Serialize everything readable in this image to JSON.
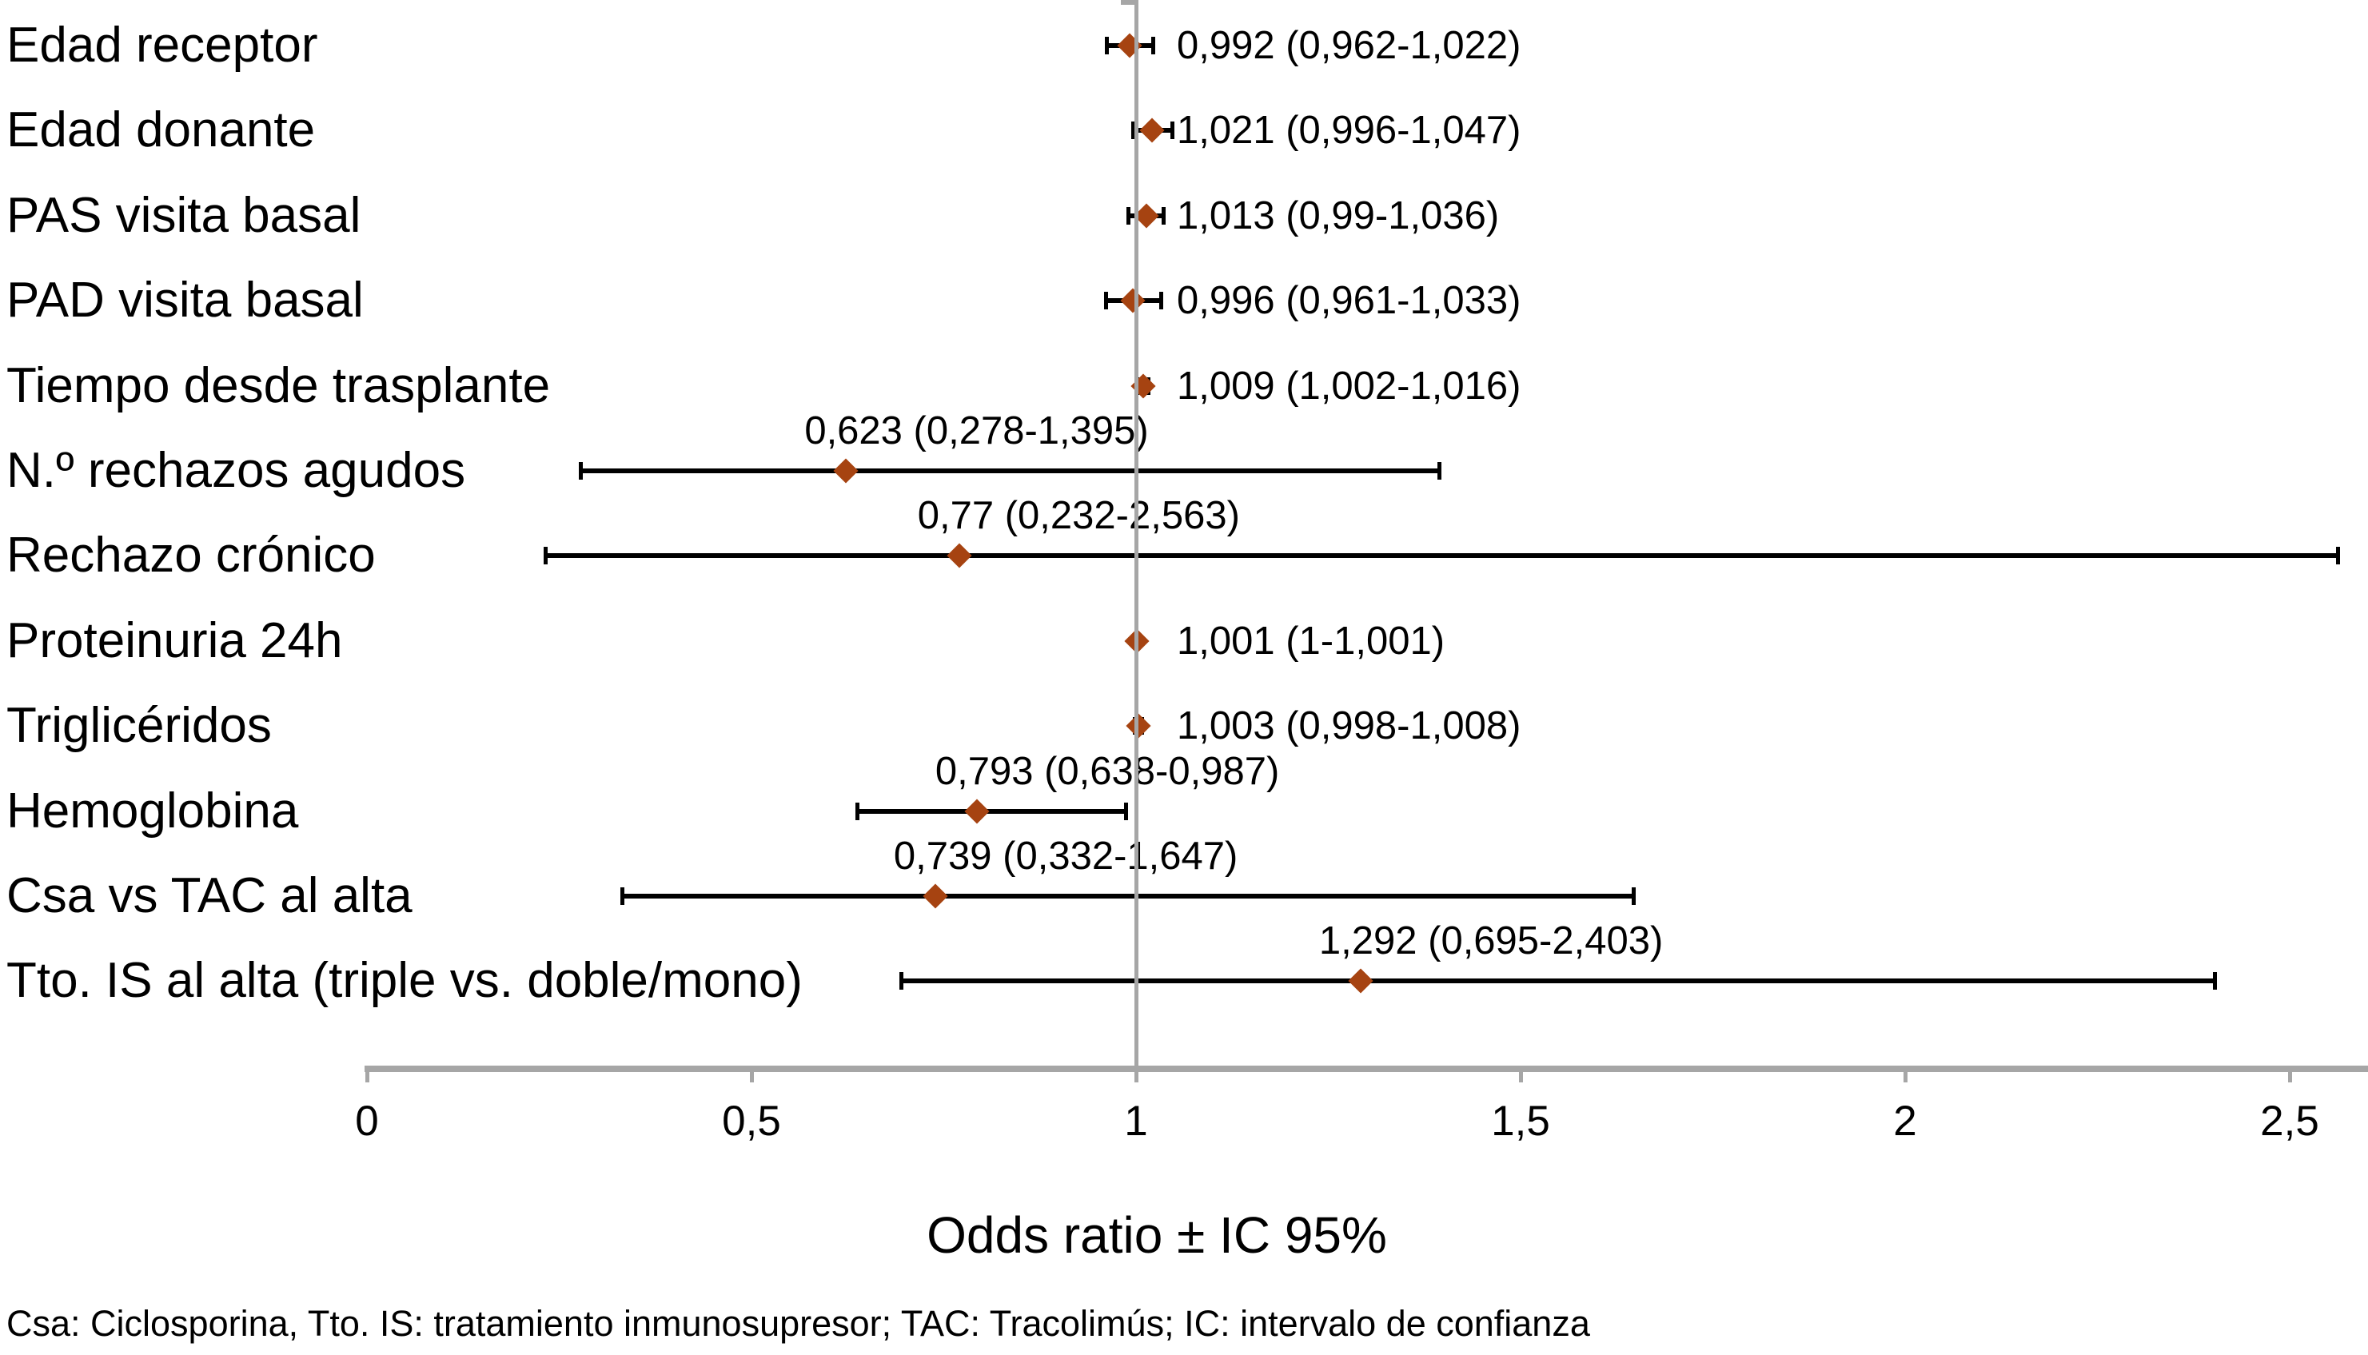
{
  "chart_data": {
    "type": "scatter",
    "subtype": "forest-plot",
    "rows": [
      {
        "label": "Edad receptor",
        "annotation": "0,992 (0,962-1,022)",
        "or": 0.992,
        "ci_low": 0.962,
        "ci_high": 1.022,
        "annotation_position": "right"
      },
      {
        "label": "Edad donante",
        "annotation": "1,021 (0,996-1,047)",
        "or": 1.021,
        "ci_low": 0.996,
        "ci_high": 1.047,
        "annotation_position": "right"
      },
      {
        "label": "PAS visita basal",
        "annotation": "1,013 (0,99-1,036)",
        "or": 1.013,
        "ci_low": 0.99,
        "ci_high": 1.036,
        "annotation_position": "right"
      },
      {
        "label": "PAD visita basal",
        "annotation": "0,996 (0,961-1,033)",
        "or": 0.996,
        "ci_low": 0.961,
        "ci_high": 1.033,
        "annotation_position": "right"
      },
      {
        "label": "Tiempo desde trasplante",
        "annotation": "1,009 (1,002-1,016)",
        "or": 1.009,
        "ci_low": 1.002,
        "ci_high": 1.016,
        "annotation_position": "right"
      },
      {
        "label": "N.º rechazos agudos",
        "annotation": "0,623 (0,278-1,395)",
        "or": 0.623,
        "ci_low": 0.278,
        "ci_high": 1.395,
        "annotation_position": "above"
      },
      {
        "label": "Rechazo crónico",
        "annotation": "0,77 (0,232-2,563)",
        "or": 0.77,
        "ci_low": 0.232,
        "ci_high": 2.563,
        "annotation_position": "above"
      },
      {
        "label": "Proteinuria 24h",
        "annotation": "1,001 (1-1,001)",
        "or": 1.001,
        "ci_low": 1.0,
        "ci_high": 1.001,
        "annotation_position": "right"
      },
      {
        "label": "Triglicéridos",
        "annotation": "1,003 (0,998-1,008)",
        "or": 1.003,
        "ci_low": 0.998,
        "ci_high": 1.008,
        "annotation_position": "right"
      },
      {
        "label": "Hemoglobina",
        "annotation": "0,793 (0,638-0,987)",
        "or": 0.793,
        "ci_low": 0.638,
        "ci_high": 0.987,
        "annotation_position": "above"
      },
      {
        "label": "Csa vs TAC al alta",
        "annotation": "0,739 (0,332-1,647)",
        "or": 0.739,
        "ci_low": 0.332,
        "ci_high": 1.647,
        "annotation_position": "above"
      },
      {
        "label": "Tto. IS al alta (triple vs. doble/mono)",
        "annotation": "1,292 (0,695-2,403)",
        "or": 1.292,
        "ci_low": 0.695,
        "ci_high": 2.403,
        "annotation_position": "above"
      }
    ],
    "x_axis": {
      "title": "Odds ratio ± IC 95%",
      "tick_values": [
        0,
        0.5,
        1,
        1.5,
        2,
        2.5
      ],
      "tick_labels": [
        "0",
        "0,5",
        "1",
        "1,5",
        "2",
        "2,5"
      ],
      "range": [
        0,
        2.6
      ],
      "reference_line_value": 1
    },
    "footnote": "Csa: Ciclosporina, Tto. IS: tratamiento inmunosupresor; TAC: Tracolimús; IC: intervalo de confianza",
    "colors": {
      "marker": "#A64311",
      "error_bar": "#000000",
      "axis": "#A6A6A6",
      "reference_line": "#A6A6A6",
      "text": "#000000"
    },
    "legend": "none",
    "grid": "off"
  }
}
